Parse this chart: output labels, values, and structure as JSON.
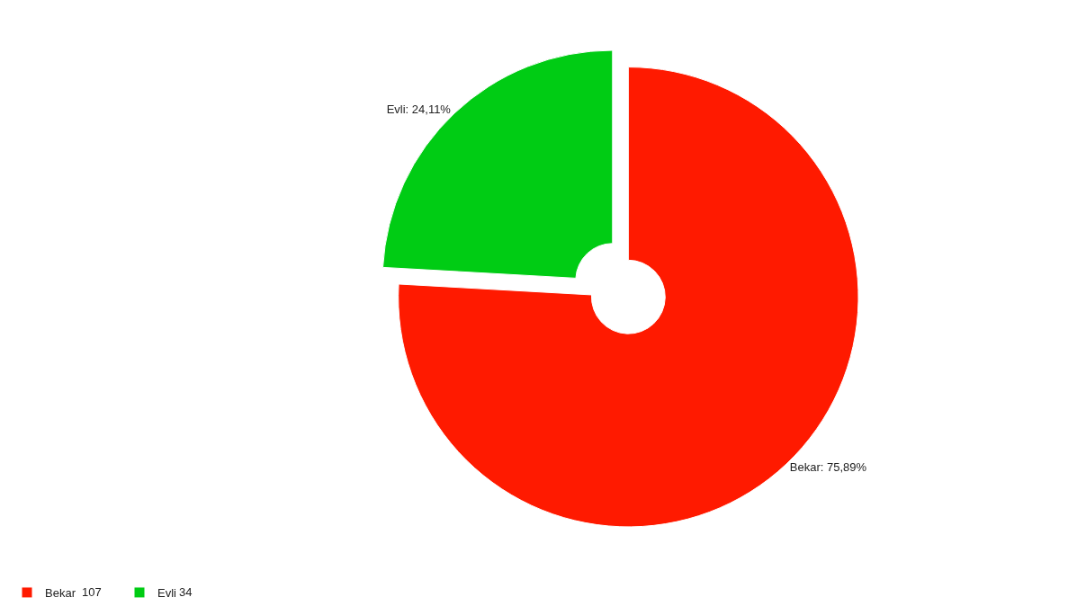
{
  "chart_data": {
    "type": "donut",
    "categories": [
      "Bekar",
      "Evli"
    ],
    "values": [
      75.89,
      24.11
    ],
    "value_labels": [
      "Bekar: 75,89%",
      "Evli: 24,11%"
    ],
    "annotations": [
      "107",
      "34"
    ],
    "colors": [
      "#ff1a00",
      "#00cc14"
    ],
    "legend": "bottom left"
  }
}
